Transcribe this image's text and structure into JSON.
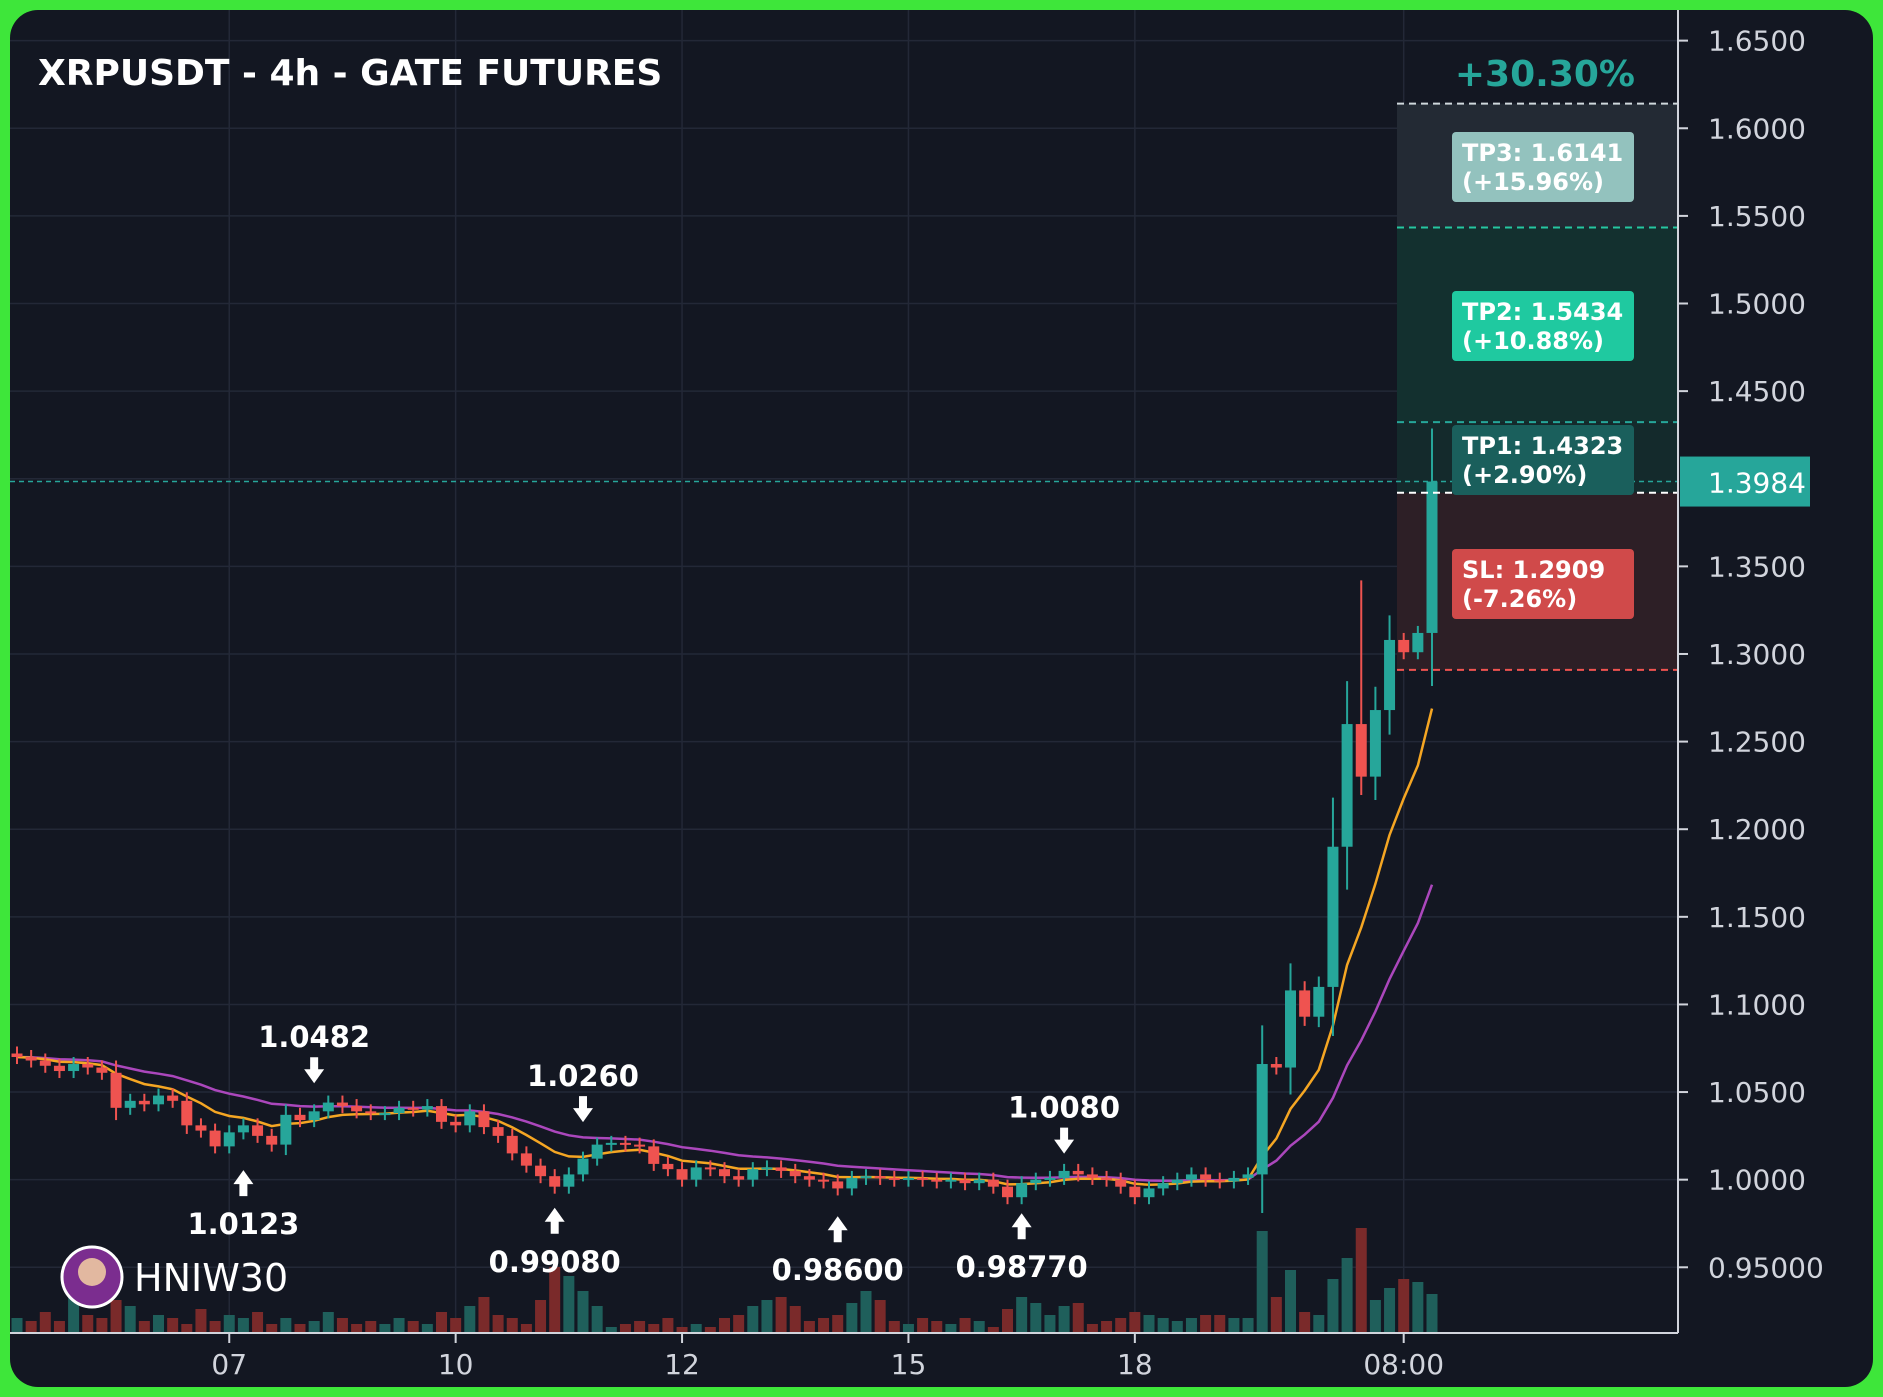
{
  "title": "XRPUSDT - 4h - GATE FUTURES",
  "watermark": "HNIW30",
  "chart_data": {
    "type": "candlestick",
    "title": "XRPUSDT - 4h - GATE FUTURES",
    "y_axis": {
      "ticks": [
        "1.6500",
        "1.6000",
        "1.5500",
        "1.5000",
        "1.4500",
        "1.3500",
        "1.3000",
        "1.2500",
        "1.2000",
        "1.1500",
        "1.1000",
        "1.0500",
        "1.0000",
        "0.95000"
      ],
      "tick_values": [
        1.65,
        1.6,
        1.55,
        1.5,
        1.45,
        1.35,
        1.3,
        1.25,
        1.2,
        1.15,
        1.1,
        1.05,
        1.0,
        0.95
      ],
      "range": [
        0.9125,
        1.6675
      ]
    },
    "x_axis": {
      "ticks": [
        "07",
        "10",
        "12",
        "15",
        "18",
        "08:00"
      ],
      "tick_bar_index": [
        15,
        31,
        47,
        63,
        79,
        98
      ]
    },
    "current_price": {
      "label": "1.3984",
      "value": 1.3984,
      "color": "#26a69a"
    },
    "performance": {
      "label": "+30.30%",
      "color": "#26a69a"
    },
    "levels": [
      {
        "name": "TP3",
        "label": "TP3: 1.6141",
        "pct": "(+15.96%)",
        "value": 1.6141,
        "color": "#8fbfbb"
      },
      {
        "name": "TP2",
        "label": "TP2: 1.5434",
        "pct": "(+10.88%)",
        "value": 1.5434,
        "color": "#1fc9a0"
      },
      {
        "name": "TP1",
        "label": "TP1: 1.4323",
        "pct": "(+2.90%)",
        "value": 1.4323,
        "color": "#1a5f5c"
      },
      {
        "name": "Entry",
        "value": 1.392,
        "color": "#ffffff"
      },
      {
        "name": "SL",
        "label": "SL: 1.2909",
        "pct": "(-7.26%)",
        "value": 1.2909,
        "color": "#d04a4a"
      }
    ],
    "annotations": [
      {
        "label": "1.0482",
        "bar": 21,
        "value": 1.0482,
        "dir": "down"
      },
      {
        "label": "1.0123",
        "bar": 16,
        "value": 1.0123,
        "dir": "up"
      },
      {
        "label": "1.0260",
        "bar": 40,
        "value": 1.026,
        "dir": "down"
      },
      {
        "label": "0.99080",
        "bar": 38,
        "value": 0.9908,
        "dir": "up"
      },
      {
        "label": "0.98600",
        "bar": 58,
        "value": 0.986,
        "dir": "up"
      },
      {
        "label": "0.98770",
        "bar": 71,
        "value": 0.9877,
        "dir": "up"
      },
      {
        "label": "1.0080",
        "bar": 74,
        "value": 1.008,
        "dir": "down"
      }
    ],
    "colors": {
      "up": "#26a69a",
      "down": "#ef5350",
      "ma_fast": "#f5a623",
      "ma_slow": "#ab47bc",
      "grid": "#232837"
    },
    "closes": [
      1.07,
      1.068,
      1.065,
      1.062,
      1.066,
      1.064,
      1.061,
      1.041,
      1.045,
      1.043,
      1.048,
      1.045,
      1.031,
      1.028,
      1.019,
      1.027,
      1.031,
      1.025,
      1.02,
      1.037,
      1.034,
      1.039,
      1.044,
      1.042,
      1.039,
      1.038,
      1.038,
      1.041,
      1.04,
      1.042,
      1.033,
      1.031,
      1.039,
      1.03,
      1.025,
      1.015,
      1.008,
      1.002,
      0.996,
      1.003,
      1.012,
      1.02,
      1.021,
      1.02,
      1.019,
      1.009,
      1.006,
      1.0,
      1.007,
      1.006,
      1.002,
      1.0,
      1.006,
      1.007,
      1.005,
      1.002,
      1.0,
      0.999,
      0.995,
      1.001,
      1.002,
      1.001,
      1.0,
      1.001,
      1.0,
      0.999,
      1.0,
      0.998,
      1.0,
      0.996,
      0.99,
      0.998,
      1.0,
      1.001,
      1.005,
      1.003,
      1.001,
      1.0,
      0.996,
      0.99,
      0.995,
      0.998,
      1.0,
      1.003,
      1.0,
      0.999,
      1.001,
      1.003,
      1.066,
      1.064,
      1.108,
      1.093,
      1.11,
      1.19,
      1.26,
      1.23,
      1.268,
      1.308,
      1.301,
      1.312,
      1.3984
    ],
    "vol_levels": [
      0.25,
      0.2,
      0.35,
      0.2,
      0.6,
      0.3,
      0.25,
      0.55,
      0.45,
      0.2,
      0.3,
      0.25,
      0.15,
      0.4,
      0.2,
      0.3,
      0.25,
      0.35,
      0.15,
      0.25,
      0.15,
      0.2,
      0.35,
      0.25,
      0.15,
      0.2,
      0.15,
      0.25,
      0.2,
      0.15,
      0.35,
      0.25,
      0.45,
      0.6,
      0.3,
      0.25,
      0.15,
      0.55,
      1.1,
      0.95,
      0.7,
      0.45,
      0.1,
      0.15,
      0.2,
      0.15,
      0.25,
      0.1,
      0.15,
      0.1,
      0.25,
      0.3,
      0.45,
      0.55,
      0.6,
      0.45,
      0.2,
      0.25,
      0.3,
      0.5,
      0.7,
      0.55,
      0.2,
      0.15,
      0.25,
      0.2,
      0.15,
      0.25,
      0.2,
      0.1,
      0.4,
      0.6,
      0.5,
      0.3,
      0.45,
      0.5,
      0.15,
      0.2,
      0.25,
      0.35,
      0.3,
      0.25,
      0.2,
      0.25,
      0.3,
      0.3,
      0.25,
      0.25,
      1.7,
      0.6,
      1.05,
      0.35,
      0.3,
      0.9,
      1.25,
      1.75,
      0.55,
      0.75,
      0.9,
      0.85,
      0.65
    ]
  }
}
